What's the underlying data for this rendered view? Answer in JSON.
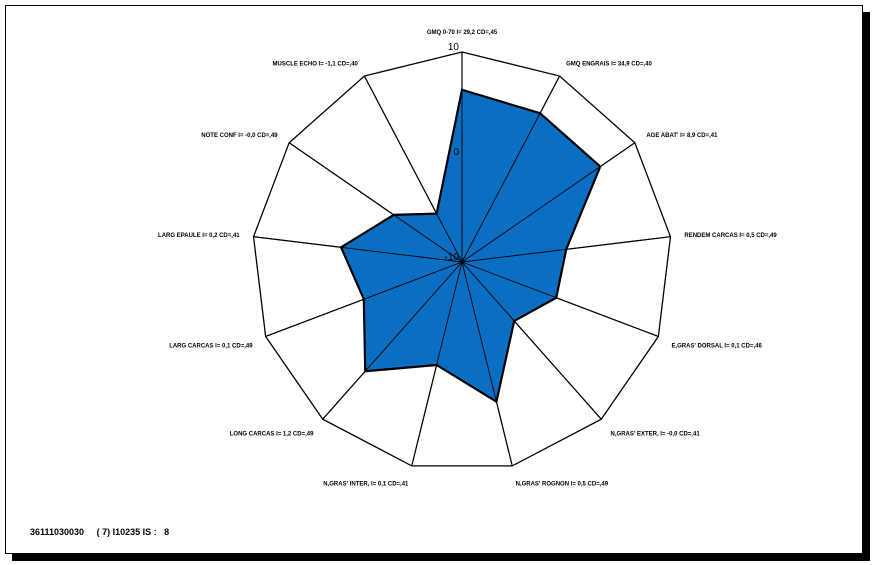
{
  "chart_data": {
    "type": "radar",
    "rmin": -10,
    "rmax": 10,
    "tick_labels": [
      {
        "value": 10,
        "label": "10"
      },
      {
        "value": 0,
        "label": "0"
      },
      {
        "value": -10,
        "label": "-10"
      }
    ],
    "axes": [
      "GMQ 0-70 I= 29,2 CD=,45",
      "GMQ ENGRAIS I= 34,9 CD=,40",
      "AGE ABAT' I= 8,9 CD=,41",
      "RENDEM CARCAS I= 0,5 CD=,49",
      "E,GRAS' DORSAL I= 0,1 CD=,46",
      "N,GRAS' EXTER, I= -0,0 CD=,41",
      "N,GRAS' ROGNON I= 0,5 CD=,49",
      "N,GRAS' INTER, I= 0,1 CD=,41",
      "LONG CARCAS I= 1,2 CD=,49",
      "LARG CARCAS I= 0,1 CD=,49",
      "LARG EPAULE I= 0,2 CD=,41",
      "NOTE CONF I= -0,0 CD=,49",
      "MUSCLE ECHO I= -1,1 CD=,40"
    ],
    "values": [
      6.4,
      6.0,
      6.0,
      0.0,
      -0.4,
      -2.5,
      3.7,
      0.1,
      3.9,
      0.0,
      1.6,
      -2.1,
      -4.8
    ],
    "fill_color": "#0a6fc2",
    "stroke_color": "#000000"
  },
  "footer": {
    "text": "36111030030     ( 7) I10235 IS :   8"
  }
}
